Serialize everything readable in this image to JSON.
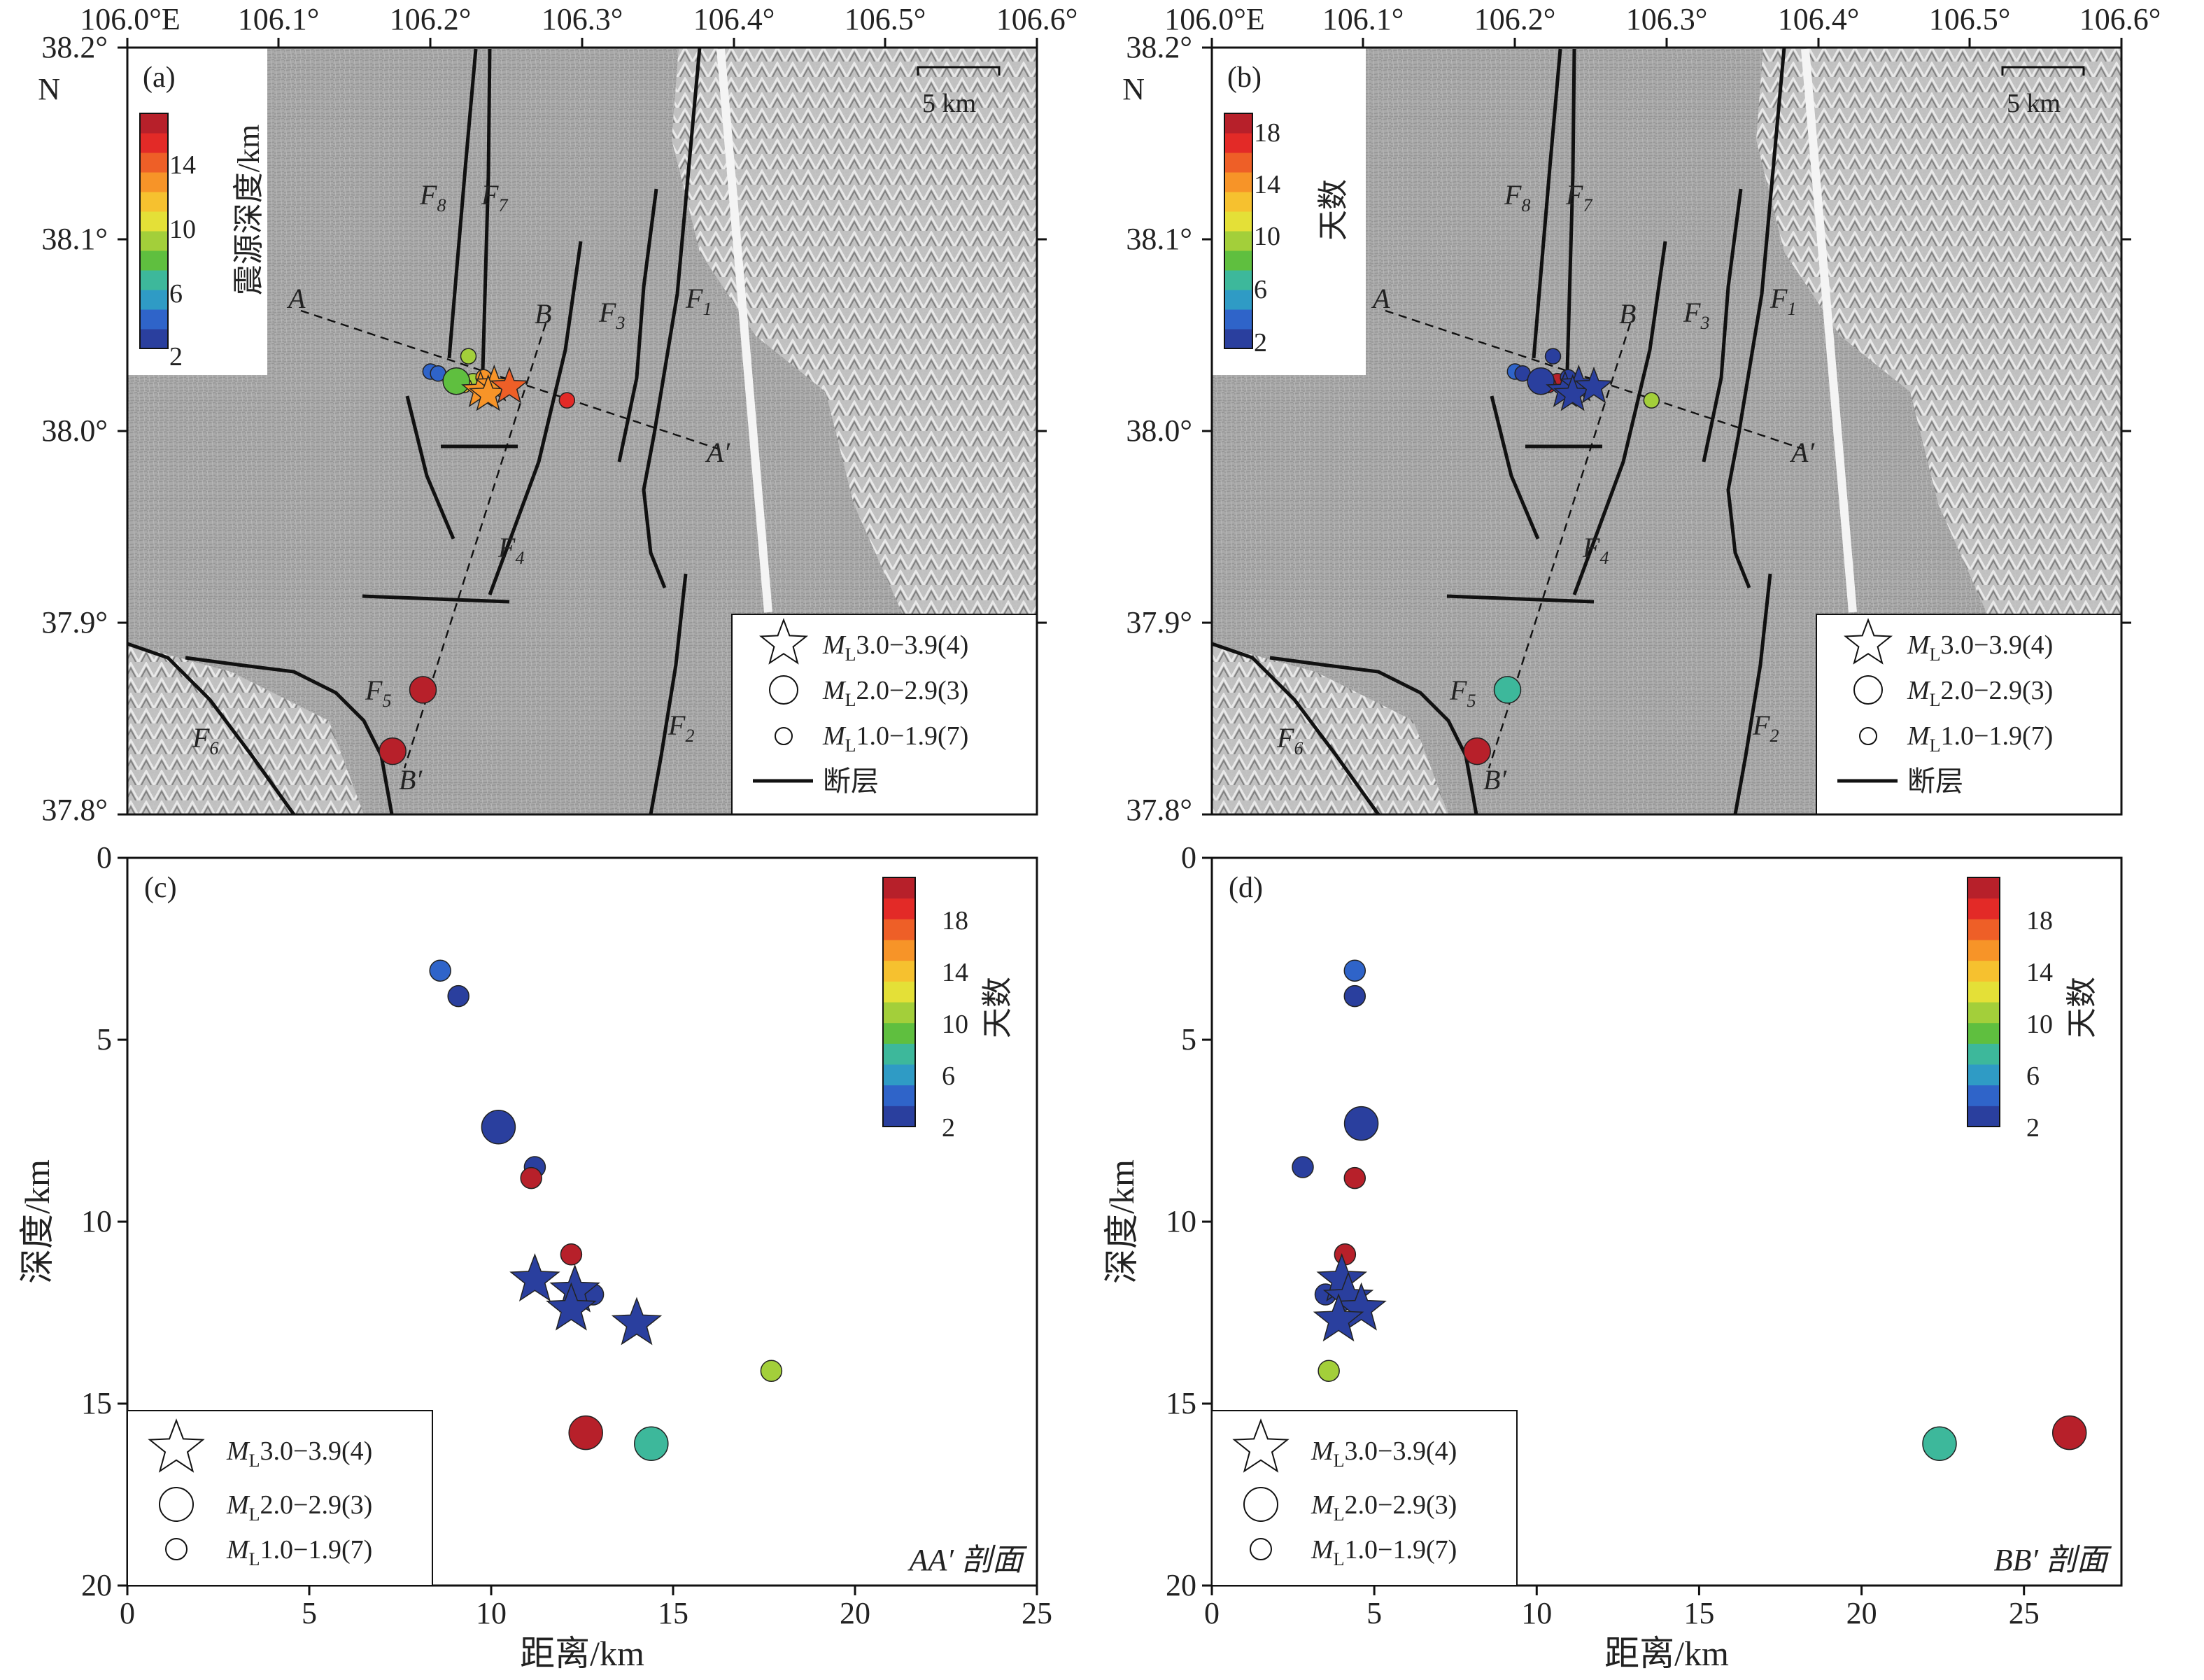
{
  "map_axes": {
    "lon_ticks": [
      "106.0°E",
      "106.1°",
      "106.2°",
      "106.3°",
      "106.4°",
      "106.5°",
      "106.6°"
    ],
    "lat_ticks": [
      "38.2°",
      "38.1°",
      "38.0°",
      "37.9°",
      "37.8°"
    ],
    "lat_top_suffix": "N",
    "scalebar": "5 km"
  },
  "fault_labels": {
    "F1": "F",
    "F1s": "1",
    "F2": "F",
    "F2s": "2",
    "F3": "F",
    "F3s": "3",
    "F4": "F",
    "F4s": "4",
    "F5": "F",
    "F5s": "5",
    "F6": "F",
    "F6s": "6",
    "F7": "F",
    "F7s": "7",
    "F8": "F",
    "F8s": "8"
  },
  "profile_labels": {
    "A": "A",
    "A_end": "A′",
    "B": "B",
    "B_end": "B′"
  },
  "legend": {
    "star": "M",
    "star_sub": "L",
    "star_rest": "3.0−3.9(4)",
    "big": "M",
    "big_sub": "L",
    "big_rest": "2.0−2.9(3)",
    "small": "M",
    "small_sub": "L",
    "small_rest": "1.0−1.9(7)",
    "fault": "断层"
  },
  "panels": {
    "a": {
      "tag": "(a)",
      "colorbar_title": "震源深度/km",
      "colorbar_ticks": [
        "2",
        "6",
        "10",
        "14"
      ]
    },
    "b": {
      "tag": "(b)",
      "colorbar_title": "天数",
      "colorbar_ticks": [
        "2",
        "6",
        "10",
        "14",
        "18"
      ]
    },
    "c": {
      "tag": "(c)",
      "colorbar_title": "天数",
      "colorbar_ticks": [
        "2",
        "6",
        "10",
        "14",
        "18"
      ],
      "profile_name": "AA′ 剖面"
    },
    "d": {
      "tag": "(d)",
      "colorbar_title": "天数",
      "colorbar_ticks": [
        "2",
        "6",
        "10",
        "14",
        "18"
      ],
      "profile_name": "BB′ 剖面"
    }
  },
  "section_axes": {
    "xlabel": "距离/km",
    "ylabel": "深度/km",
    "x_ticks": [
      "0",
      "5",
      "10",
      "15",
      "20",
      "25"
    ],
    "y_ticks": [
      "0",
      "5",
      "10",
      "15",
      "20"
    ]
  },
  "colors": {
    "colorscale": [
      "#2a3f9e",
      "#2f64c9",
      "#2f9bc5",
      "#3db89b",
      "#5fbf3f",
      "#a3cf3a",
      "#e4e037",
      "#f6c12f",
      "#f79428",
      "#ee5f27",
      "#e32a27",
      "#b7202a"
    ]
  },
  "chart_data": [
    {
      "panel": "a",
      "type": "scatter",
      "x_unit": "longitude",
      "y_unit": "latitude",
      "xlim": [
        106.0,
        106.6
      ],
      "ylim": [
        37.8,
        38.2
      ],
      "color_by": "depth_km",
      "color_range": [
        1.5,
        16.5
      ],
      "events": [
        {
          "lon": 106.233,
          "lat": 38.021,
          "mag": "3",
          "depth": 11.6
        },
        {
          "lon": 106.242,
          "lat": 38.024,
          "mag": "3",
          "depth": 12.4
        },
        {
          "lon": 106.238,
          "lat": 38.019,
          "mag": "3",
          "depth": 12.0
        },
        {
          "lon": 106.252,
          "lat": 38.023,
          "mag": "3",
          "depth": 12.8
        },
        {
          "lon": 106.217,
          "lat": 38.026,
          "mag": "2",
          "depth": 7.4
        },
        {
          "lon": 106.195,
          "lat": 37.865,
          "mag": "2",
          "depth": 16.1
        },
        {
          "lon": 106.175,
          "lat": 37.833,
          "mag": "2",
          "depth": 15.8
        },
        {
          "lon": 106.2,
          "lat": 38.031,
          "mag": "1",
          "depth": 3.1
        },
        {
          "lon": 106.205,
          "lat": 38.03,
          "mag": "1",
          "depth": 3.8
        },
        {
          "lon": 106.225,
          "lat": 38.039,
          "mag": "1",
          "depth": 8.5
        },
        {
          "lon": 106.228,
          "lat": 38.026,
          "mag": "1",
          "depth": 8.8
        },
        {
          "lon": 106.222,
          "lat": 38.024,
          "mag": "1",
          "depth": 10.9
        },
        {
          "lon": 106.235,
          "lat": 38.028,
          "mag": "1",
          "depth": 12.0
        },
        {
          "lon": 106.29,
          "lat": 38.016,
          "mag": "1",
          "depth": 14.1
        }
      ]
    },
    {
      "panel": "b",
      "type": "scatter",
      "x_unit": "longitude",
      "y_unit": "latitude",
      "xlim": [
        106.0,
        106.6
      ],
      "ylim": [
        37.8,
        38.2
      ],
      "color_by": "days",
      "color_range": [
        1,
        19.5
      ],
      "events": [
        {
          "lon": 106.233,
          "lat": 38.021,
          "mag": "3",
          "days": 1
        },
        {
          "lon": 106.242,
          "lat": 38.024,
          "mag": "3",
          "days": 1
        },
        {
          "lon": 106.238,
          "lat": 38.019,
          "mag": "3",
          "days": 1
        },
        {
          "lon": 106.252,
          "lat": 38.023,
          "mag": "3",
          "days": 1
        },
        {
          "lon": 106.217,
          "lat": 38.026,
          "mag": "2",
          "days": 1
        },
        {
          "lon": 106.195,
          "lat": 37.865,
          "mag": "2",
          "days": 7
        },
        {
          "lon": 106.175,
          "lat": 37.833,
          "mag": "2",
          "days": 18
        },
        {
          "lon": 106.2,
          "lat": 38.031,
          "mag": "1",
          "days": 4
        },
        {
          "lon": 106.205,
          "lat": 38.03,
          "mag": "1",
          "days": 1
        },
        {
          "lon": 106.225,
          "lat": 38.039,
          "mag": "1",
          "days": 1
        },
        {
          "lon": 106.228,
          "lat": 38.026,
          "mag": "1",
          "days": 19
        },
        {
          "lon": 106.222,
          "lat": 38.024,
          "mag": "1",
          "days": 19
        },
        {
          "lon": 106.235,
          "lat": 38.028,
          "mag": "1",
          "days": 1
        },
        {
          "lon": 106.29,
          "lat": 38.016,
          "mag": "1",
          "days": 9
        }
      ]
    },
    {
      "panel": "c",
      "type": "scatter",
      "xlabel": "距离/km",
      "ylabel": "深度/km",
      "xlim": [
        0,
        25
      ],
      "ylim": [
        20,
        0
      ],
      "color_by": "days",
      "color_range": [
        1,
        19.5
      ],
      "events": [
        {
          "dist": 8.6,
          "depth": 3.1,
          "mag": "1",
          "days": 4
        },
        {
          "dist": 9.1,
          "depth": 3.8,
          "mag": "1",
          "days": 1
        },
        {
          "dist": 10.2,
          "depth": 7.4,
          "mag": "2",
          "days": 1
        },
        {
          "dist": 11.2,
          "depth": 8.5,
          "mag": "1",
          "days": 1
        },
        {
          "dist": 11.1,
          "depth": 8.8,
          "mag": "1",
          "days": 19
        },
        {
          "dist": 12.2,
          "depth": 10.9,
          "mag": "1",
          "days": 19
        },
        {
          "dist": 11.2,
          "depth": 11.6,
          "mag": "3",
          "days": 1
        },
        {
          "dist": 12.8,
          "depth": 12.0,
          "mag": "1",
          "days": 1
        },
        {
          "dist": 12.3,
          "depth": 11.9,
          "mag": "3",
          "days": 1
        },
        {
          "dist": 12.2,
          "depth": 12.4,
          "mag": "3",
          "days": 1
        },
        {
          "dist": 14.0,
          "depth": 12.8,
          "mag": "3",
          "days": 1
        },
        {
          "dist": 17.7,
          "depth": 14.1,
          "mag": "1",
          "days": 9
        },
        {
          "dist": 12.6,
          "depth": 15.8,
          "mag": "2",
          "days": 18
        },
        {
          "dist": 14.4,
          "depth": 16.1,
          "mag": "2",
          "days": 7
        }
      ]
    },
    {
      "panel": "d",
      "type": "scatter",
      "xlabel": "距离/km",
      "ylabel": "深度/km",
      "xlim": [
        0,
        28
      ],
      "ylim": [
        20,
        0
      ],
      "color_by": "days",
      "color_range": [
        1,
        19.5
      ],
      "events": [
        {
          "dist": 4.4,
          "depth": 3.1,
          "mag": "1",
          "days": 4
        },
        {
          "dist": 4.4,
          "depth": 3.8,
          "mag": "1",
          "days": 1
        },
        {
          "dist": 4.6,
          "depth": 7.3,
          "mag": "2",
          "days": 1
        },
        {
          "dist": 2.8,
          "depth": 8.5,
          "mag": "1",
          "days": 1
        },
        {
          "dist": 4.4,
          "depth": 8.8,
          "mag": "1",
          "days": 19
        },
        {
          "dist": 4.1,
          "depth": 10.9,
          "mag": "1",
          "days": 19
        },
        {
          "dist": 4.0,
          "depth": 11.6,
          "mag": "3",
          "days": 1
        },
        {
          "dist": 3.5,
          "depth": 12.0,
          "mag": "1",
          "days": 1
        },
        {
          "dist": 4.2,
          "depth": 12.1,
          "mag": "3",
          "days": 1
        },
        {
          "dist": 4.6,
          "depth": 12.4,
          "mag": "3",
          "days": 1
        },
        {
          "dist": 3.9,
          "depth": 12.7,
          "mag": "3",
          "days": 1
        },
        {
          "dist": 3.6,
          "depth": 14.1,
          "mag": "1",
          "days": 9
        },
        {
          "dist": 22.4,
          "depth": 16.1,
          "mag": "2",
          "days": 7
        },
        {
          "dist": 26.4,
          "depth": 15.8,
          "mag": "2",
          "days": 18
        }
      ]
    }
  ]
}
